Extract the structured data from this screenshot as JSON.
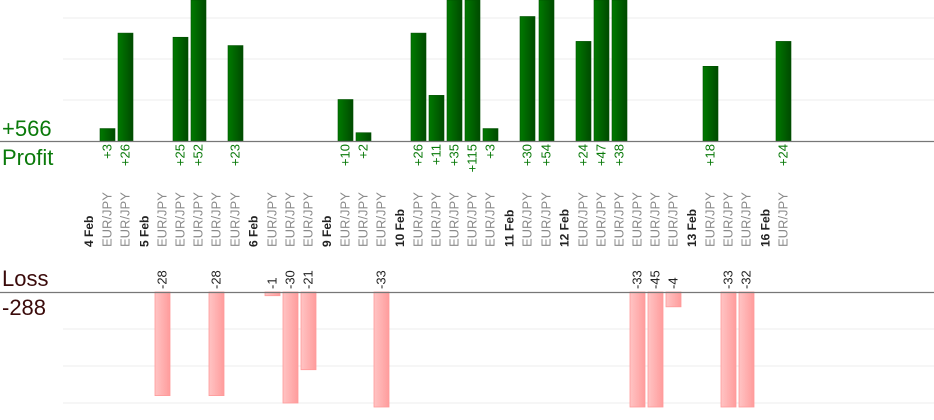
{
  "chart_data": {
    "type": "bar",
    "title": "",
    "summary": {
      "profit_total": "+566",
      "profit_label": "Profit",
      "loss_label": "Loss",
      "loss_total": "-288"
    },
    "colors": {
      "profit_bar": "#006400",
      "profit_text": "#0a7a0a",
      "loss_bar": "#ffb0b0",
      "loss_text": "#3a0a0a"
    },
    "days": [
      {
        "date": "4 Feb",
        "trades": [
          {
            "pair": "EUR/JPY",
            "value": 3
          },
          {
            "pair": "EUR/JPY",
            "value": 26
          }
        ]
      },
      {
        "date": "5 Feb",
        "trades": [
          {
            "pair": "EUR/JPY",
            "value": -28
          },
          {
            "pair": "EUR/JPY",
            "value": 25
          },
          {
            "pair": "EUR/JPY",
            "value": 52
          },
          {
            "pair": "EUR/JPY",
            "value": -28
          },
          {
            "pair": "EUR/JPY",
            "value": 23
          }
        ]
      },
      {
        "date": "6 Feb",
        "trades": [
          {
            "pair": "EUR/JPY",
            "value": -1
          },
          {
            "pair": "EUR/JPY",
            "value": -30
          },
          {
            "pair": "EUR/JPY",
            "value": -21
          }
        ]
      },
      {
        "date": "9 Feb",
        "trades": [
          {
            "pair": "EUR/JPY",
            "value": 10
          },
          {
            "pair": "EUR/JPY",
            "value": 2
          },
          {
            "pair": "EUR/JPY",
            "value": -33
          }
        ]
      },
      {
        "date": "10 Feb",
        "trades": [
          {
            "pair": "EUR/JPY",
            "value": 26
          },
          {
            "pair": "EUR/JPY",
            "value": 11
          },
          {
            "pair": "EUR/JPY",
            "value": 35
          },
          {
            "pair": "EUR/JPY",
            "value": 115
          },
          {
            "pair": "EUR/JPY",
            "value": 3
          }
        ]
      },
      {
        "date": "11 Feb",
        "trades": [
          {
            "pair": "EUR/JPY",
            "value": 30
          },
          {
            "pair": "EUR/JPY",
            "value": 54
          }
        ]
      },
      {
        "date": "12 Feb",
        "trades": [
          {
            "pair": "EUR/JPY",
            "value": 24
          },
          {
            "pair": "EUR/JPY",
            "value": 47
          },
          {
            "pair": "EUR/JPY",
            "value": 38
          },
          {
            "pair": "EUR/JPY",
            "value": -33
          },
          {
            "pair": "EUR/JPY",
            "value": -45
          },
          {
            "pair": "EUR/JPY",
            "value": -4
          }
        ]
      },
      {
        "date": "13 Feb",
        "trades": [
          {
            "pair": "EUR/JPY",
            "value": 18
          },
          {
            "pair": "EUR/JPY",
            "value": -33
          },
          {
            "pair": "EUR/JPY",
            "value": -32
          }
        ]
      },
      {
        "date": "16 Feb",
        "trades": [
          {
            "pair": "EUR/JPY",
            "value": 24
          }
        ]
      }
    ]
  }
}
